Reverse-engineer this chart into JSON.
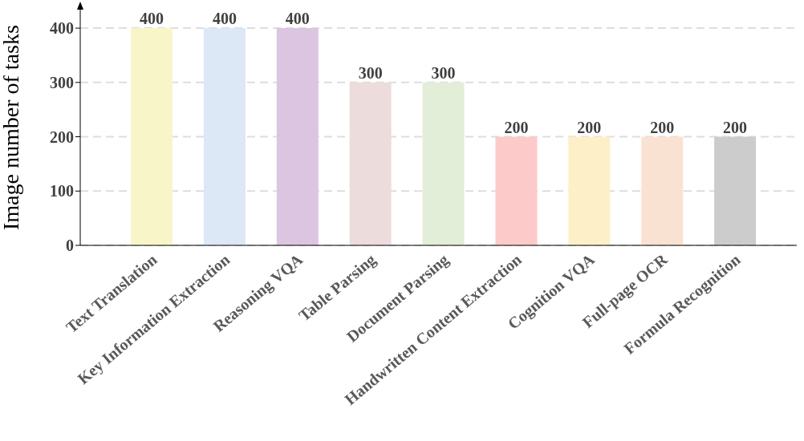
{
  "chart_data": {
    "type": "bar",
    "ylabel": "Image number of tasks",
    "categories": [
      "Text Translation",
      "Key Information Extraction",
      "Reasoning VQA",
      "Table Parsing",
      "Document Parsing",
      "Handwritten Content Extraction",
      "Cognition VQA",
      "Full-page OCR",
      "Formula Recognition"
    ],
    "values": [
      400,
      400,
      400,
      300,
      300,
      200,
      200,
      200,
      200
    ],
    "colors": [
      "#f8f6c8",
      "#dce8f6",
      "#dcc5e0",
      "#ecdcdc",
      "#e2eed8",
      "#fdcaca",
      "#fdf0c8",
      "#f9e2d2",
      "#cccccc"
    ],
    "ylim": [
      0,
      440
    ],
    "yticks": [
      0,
      100,
      200,
      300,
      400
    ],
    "grid": "y",
    "data_labels": true
  }
}
